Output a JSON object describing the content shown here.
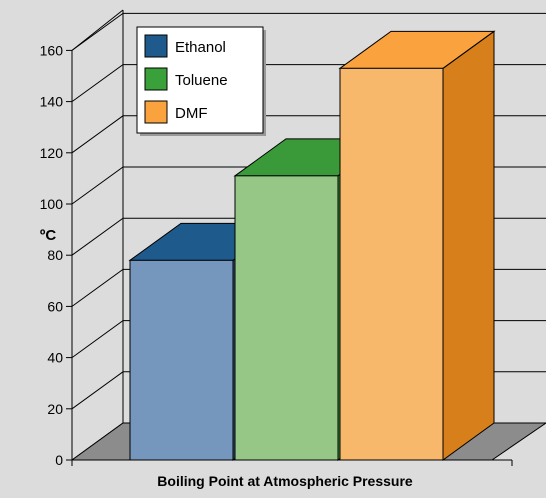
{
  "chart_data": {
    "type": "bar",
    "title": "",
    "xlabel": "Boiling Point at Atmospheric Pressure",
    "ylabel": "ºC",
    "ylim": [
      0,
      160
    ],
    "yticks": [
      0,
      20,
      40,
      60,
      80,
      100,
      120,
      140,
      160
    ],
    "grid": true,
    "legend_placement": "top-left",
    "categories": [
      "Ethanol",
      "Toluene",
      "DMF"
    ],
    "values": [
      78,
      111,
      153
    ],
    "colors": {
      "Ethanol": {
        "front": "#7597bd",
        "side": "#2e5480",
        "top": "#1f5a8c",
        "swatch": "#1f5a8c"
      },
      "Toluene": {
        "front": "#96c786",
        "side": "#3e8e3c",
        "top": "#3a9a3a",
        "swatch": "#3aa03a"
      },
      "DMF": {
        "front": "#f8b86b",
        "side": "#d77f1b",
        "top": "#f9a23e",
        "swatch": "#f9a23e"
      }
    },
    "floor_color": "#8c8c8c",
    "wall_color": "#dcdcdc"
  }
}
